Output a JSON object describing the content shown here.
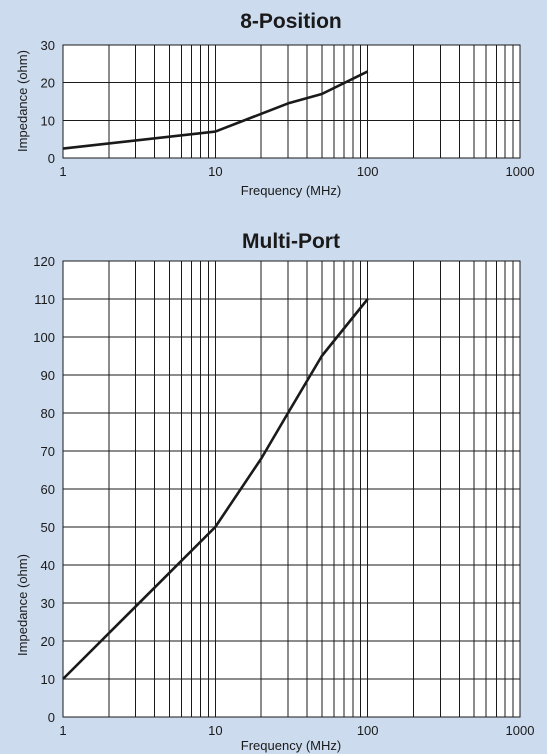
{
  "chart_data": [
    {
      "type": "line",
      "title": "8-Position",
      "xlabel": "Frequency (MHz)",
      "ylabel": "Impedance (ohm)",
      "x_scale": "log",
      "xlim": [
        1,
        1000
      ],
      "ylim": [
        0,
        30
      ],
      "x_ticks": [
        "1",
        "10",
        "100",
        "1000"
      ],
      "y_ticks": [
        "0",
        "10",
        "20",
        "30"
      ],
      "grid": true,
      "series": [
        {
          "x": [
            1,
            10,
            30,
            50,
            100
          ],
          "y": [
            2.5,
            7,
            14.5,
            17,
            23
          ]
        }
      ]
    },
    {
      "type": "line",
      "title": "Multi-Port",
      "xlabel": "Frequency (MHz)",
      "ylabel": "Impedance (ohm)",
      "x_scale": "log",
      "xlim": [
        1,
        1000
      ],
      "ylim": [
        0,
        120
      ],
      "x_ticks": [
        "1",
        "10",
        "100",
        "1000"
      ],
      "y_ticks": [
        "0",
        "10",
        "20",
        "30",
        "40",
        "50",
        "60",
        "70",
        "80",
        "90",
        "100",
        "110",
        "120"
      ],
      "grid": true,
      "series": [
        {
          "x": [
            1,
            10,
            20,
            30,
            50,
            100
          ],
          "y": [
            10,
            50,
            68,
            80,
            95,
            110
          ]
        }
      ]
    }
  ]
}
